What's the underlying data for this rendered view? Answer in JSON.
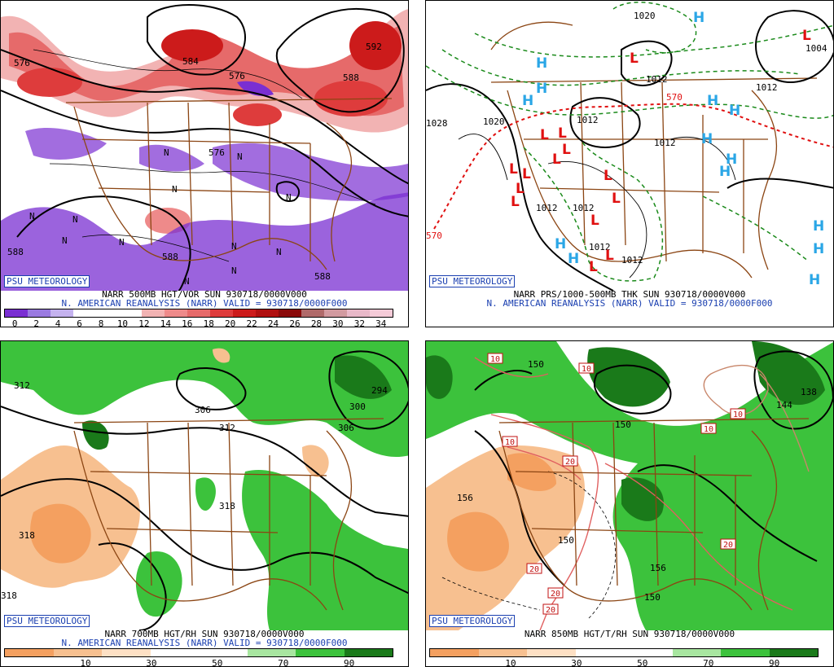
{
  "panels": {
    "tl": {
      "caption_line1": "NARR 500MB HGT/VOR SUN 930718/0000V000",
      "caption_line2": "N. AMERICAN REANALYSIS (NARR) VALID = 930718/0000F000",
      "scale_colors": [
        "#7a2fd2",
        "#9a7ae0",
        "#c4b2ee",
        "#ffffff",
        "#ffffff",
        "#ffffff",
        "#f2b3b3",
        "#ee8a8a",
        "#e66a6a",
        "#de3c3c",
        "#cc1b1b",
        "#b01010",
        "#8a0a0a",
        "#b06a6a",
        "#d29aa0",
        "#e8b8c8",
        "#f5cbd8"
      ],
      "scale_labels": [
        "0",
        "2",
        "4",
        "6",
        "8",
        "10",
        "12",
        "14",
        "16",
        "18",
        "20",
        "22",
        "24",
        "26",
        "28",
        "30",
        "32",
        "34"
      ],
      "contour_labels": [
        "576",
        "584",
        "576",
        "592",
        "588",
        "576",
        "588",
        "588",
        "588"
      ],
      "vort_max_labels": [
        "N",
        "N",
        "N",
        "N",
        "N",
        "N",
        "N",
        "N",
        "N",
        "N",
        "N",
        "N"
      ]
    },
    "tr": {
      "caption_line1": "NARR PRS/1000-500MB THK SUN 930718/0000V000",
      "caption_line2": "N. AMERICAN REANALYSIS (NARR) VALID = 930718/0000F000",
      "pressure_labels": [
        "1020",
        "1028",
        "1020",
        "1012",
        "1012",
        "1012",
        "1012",
        "1012",
        "1012",
        "1004",
        "1012",
        "1012"
      ],
      "thickness_labels": [
        "570",
        "570"
      ],
      "highs": [
        "H",
        "H",
        "H",
        "H",
        "H",
        "H",
        "H",
        "H",
        "H",
        "H",
        "H",
        "H",
        "H",
        "H"
      ],
      "lows": [
        "L",
        "L",
        "L",
        "L",
        "L",
        "L",
        "L",
        "L",
        "L",
        "L",
        "L",
        "L",
        "L",
        "L",
        "L"
      ]
    },
    "bl": {
      "caption_line1": "NARR 700MB HGT/RH SUN 930718/0000V000",
      "caption_line2": "N. AMERICAN REANALYSIS (NARR) VALID = 930718/0000F000",
      "scale_colors": [
        "#f4a060",
        "#f7c090",
        "#fde0c4",
        "#ffffff",
        "#ffffff",
        "#a8e6a0",
        "#3cc23c",
        "#1a7a1a"
      ],
      "scale_labels": [
        "10",
        "30",
        "50",
        "70",
        "90"
      ],
      "contour_labels": [
        "312",
        "306",
        "312",
        "300",
        "294",
        "306",
        "318",
        "318",
        "318"
      ]
    },
    "br": {
      "caption_line1": "NARR 850MB HGT/T/RH SUN 930718/0000V000",
      "scale_colors": [
        "#f4a060",
        "#f7c090",
        "#fde0c4",
        "#ffffff",
        "#ffffff",
        "#a8e6a0",
        "#3cc23c",
        "#1a7a1a"
      ],
      "scale_labels": [
        "10",
        "30",
        "50",
        "70",
        "90"
      ],
      "contour_labels": [
        "150",
        "150",
        "156",
        "150",
        "156",
        "138",
        "144",
        "150"
      ],
      "temp_labels": [
        "10",
        "10",
        "10",
        "10",
        "10",
        "20",
        "20",
        "20",
        "20",
        "20"
      ]
    }
  },
  "badge": "PSU METEOROLOGY"
}
